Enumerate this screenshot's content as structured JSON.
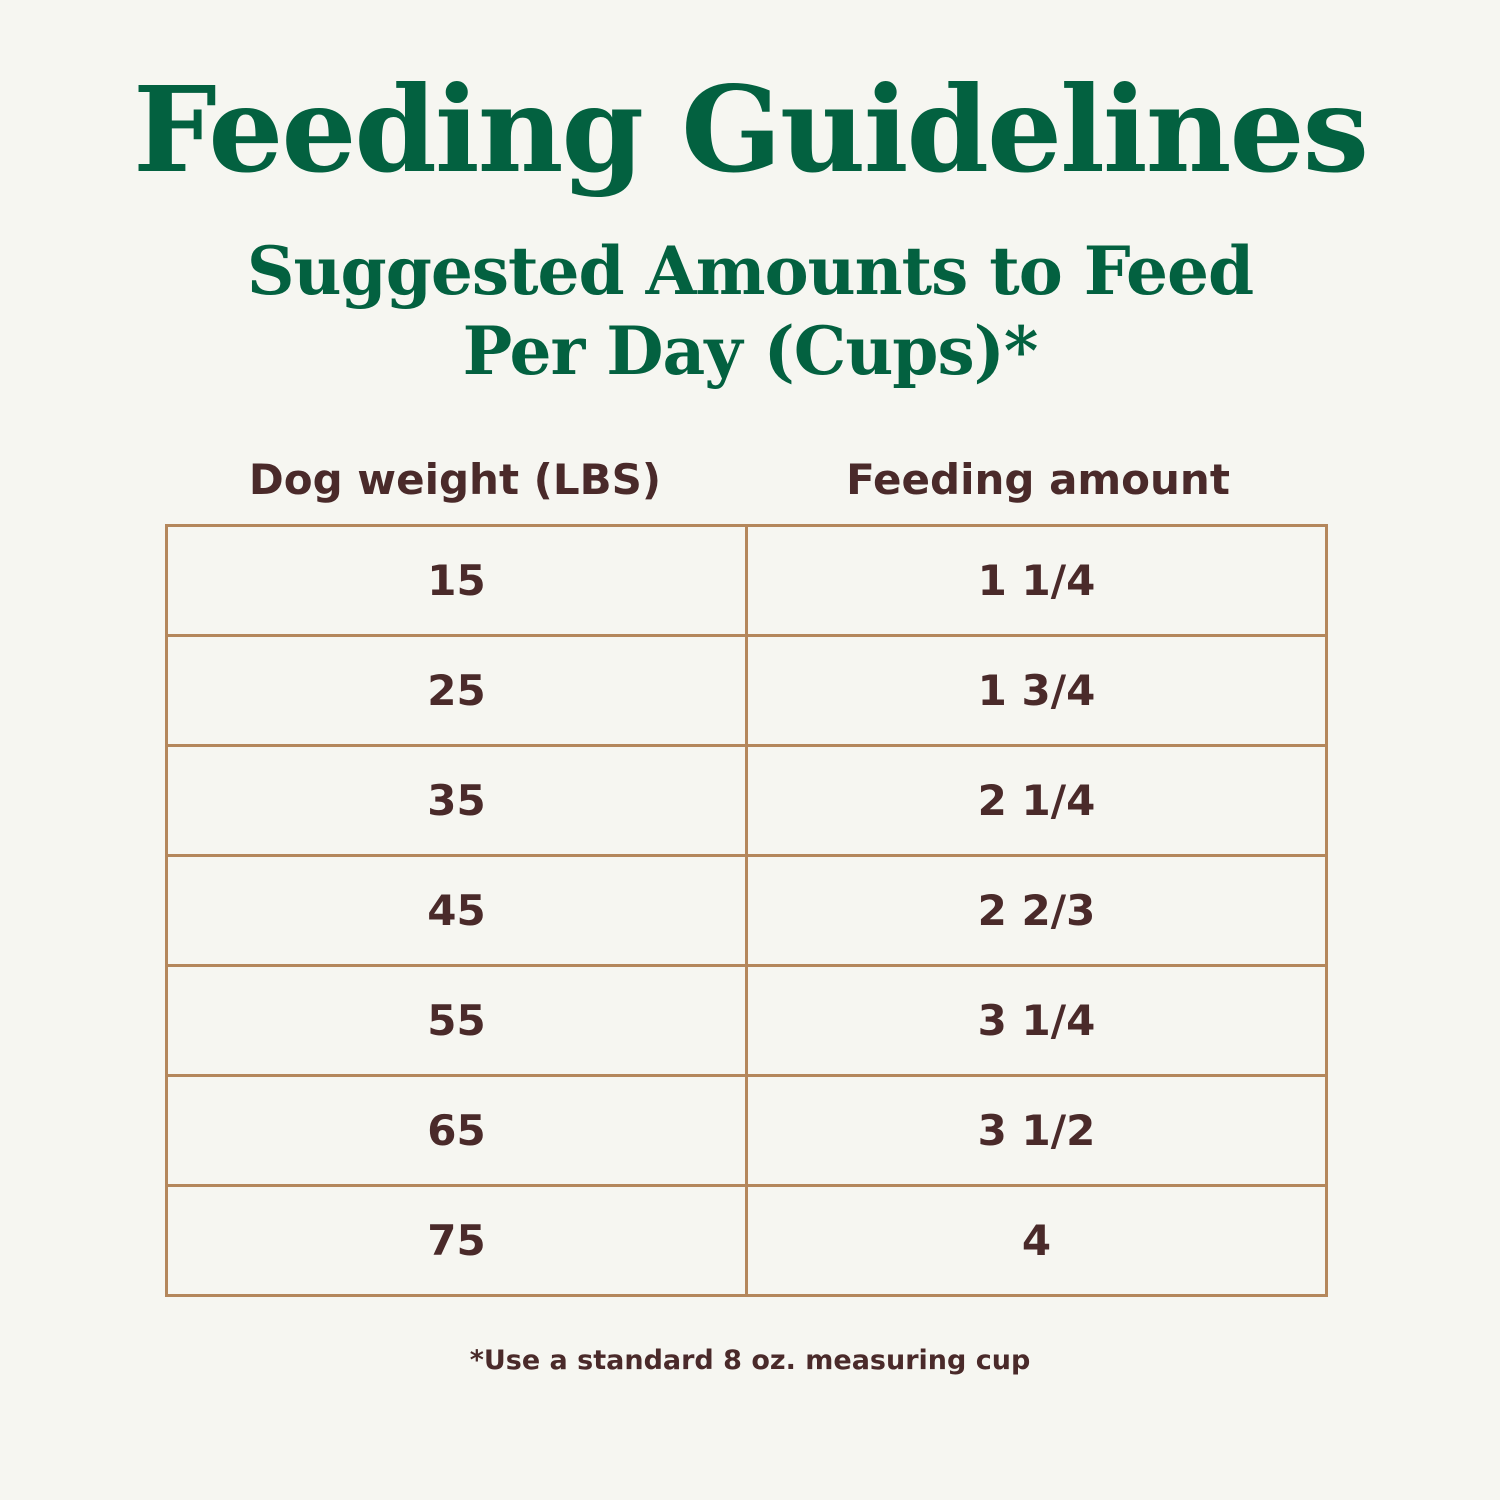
{
  "header": {
    "title": "Feeding Guidelines",
    "subtitle_line1": "Suggested Amounts to Feed",
    "subtitle_line2": "Per Day (Cups)*"
  },
  "table": {
    "columns": [
      "Dog weight (LBS)",
      "Feeding amount"
    ],
    "rows": [
      [
        "15",
        "1 1/4"
      ],
      [
        "25",
        "1 3/4"
      ],
      [
        "35",
        "2 1/4"
      ],
      [
        "45",
        "2 2/3"
      ],
      [
        "55",
        "3 1/4"
      ],
      [
        "65",
        "3 1/2"
      ],
      [
        "75",
        "4"
      ]
    ]
  },
  "footnote": "*Use a standard 8 oz. measuring cup"
}
